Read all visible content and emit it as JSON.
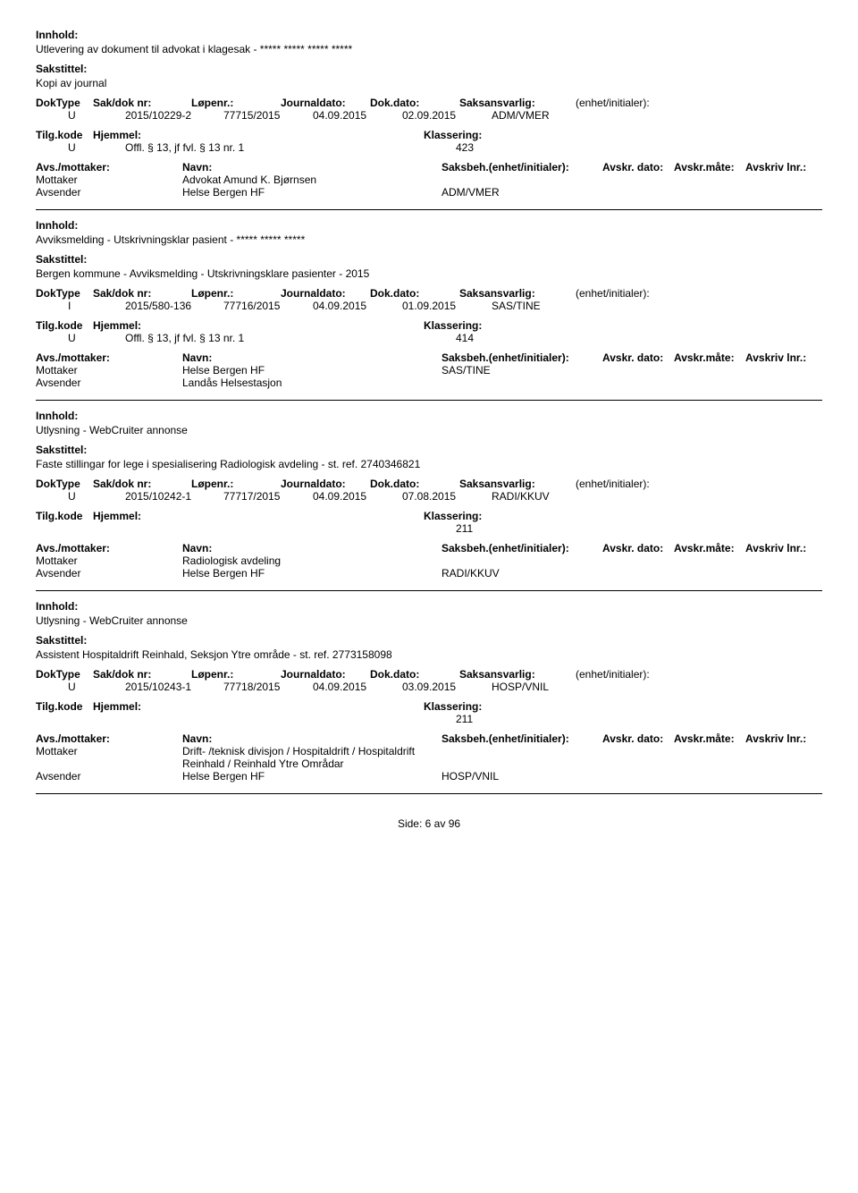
{
  "labels": {
    "innhold": "Innhold:",
    "sakstittel": "Sakstittel:",
    "doktype": "DokType",
    "sakdok": "Sak/dok nr:",
    "lopenr": "Løpenr.:",
    "journaldato": "Journaldato:",
    "dokdato": "Dok.dato:",
    "saksansvarlig": "Saksansvarlig:",
    "enhet": "(enhet/initialer):",
    "tilgkode": "Tilg.kode",
    "hjemmel": "Hjemmel:",
    "klassering": "Klassering:",
    "avsmottaker": "Avs./mottaker:",
    "navn": "Navn:",
    "saksbeh": "Saksbeh.(enhet/initialer):",
    "avskrdato": "Avskr. dato:",
    "avskrmate": "Avskr.måte:",
    "avskrivlnr": "Avskriv lnr.:",
    "mottaker": "Mottaker",
    "avsender": "Avsender"
  },
  "records": [
    {
      "innhold": "Utlevering av dokument til advokat i klagesak - ***** ***** ***** *****",
      "sakstittel": "Kopi av journal",
      "doktype": "U",
      "sakdok": "2015/10229-2",
      "lopenr": "77715/2015",
      "journaldato": "04.09.2015",
      "dokdato": "02.09.2015",
      "saksansvarlig": "ADM/VMER",
      "tilgkode": "U",
      "hjemmel": "Offl. § 13, jf fvl. § 13 nr. 1",
      "klassering": "423",
      "parties": [
        {
          "role": "Mottaker",
          "navn": "Advokat Amund K. Bjørnsen",
          "saksbeh": ""
        },
        {
          "role": "Avsender",
          "navn": "Helse Bergen HF",
          "saksbeh": "ADM/VMER"
        }
      ]
    },
    {
      "innhold": "Avviksmelding - Utskrivningsklar pasient - ***** ***** *****",
      "sakstittel": "Bergen kommune - Avviksmelding - Utskrivningsklare pasienter - 2015",
      "doktype": "I",
      "sakdok": "2015/580-136",
      "lopenr": "77716/2015",
      "journaldato": "04.09.2015",
      "dokdato": "01.09.2015",
      "saksansvarlig": "SAS/TINE",
      "tilgkode": "U",
      "hjemmel": "Offl. § 13, jf fvl. § 13 nr. 1",
      "klassering": "414",
      "parties": [
        {
          "role": "Mottaker",
          "navn": "Helse Bergen HF",
          "saksbeh": "SAS/TINE"
        },
        {
          "role": "Avsender",
          "navn": "Landås Helsestasjon",
          "saksbeh": ""
        }
      ]
    },
    {
      "innhold": "Utlysning - WebCruiter annonse",
      "sakstittel": "Faste stillingar for lege i spesialisering Radiologisk avdeling - st. ref. 2740346821",
      "doktype": "U",
      "sakdok": "2015/10242-1",
      "lopenr": "77717/2015",
      "journaldato": "04.09.2015",
      "dokdato": "07.08.2015",
      "saksansvarlig": "RADI/KKUV",
      "tilgkode": "",
      "hjemmel": "",
      "klassering": "211",
      "parties": [
        {
          "role": "Mottaker",
          "navn": "Radiologisk avdeling",
          "saksbeh": ""
        },
        {
          "role": "Avsender",
          "navn": "Helse Bergen HF",
          "saksbeh": "RADI/KKUV"
        }
      ]
    },
    {
      "innhold": "Utlysning - WebCruiter annonse",
      "sakstittel": "Assistent Hospitaldrift Reinhald, Seksjon Ytre område - st. ref. 2773158098",
      "doktype": "U",
      "sakdok": "2015/10243-1",
      "lopenr": "77718/2015",
      "journaldato": "04.09.2015",
      "dokdato": "03.09.2015",
      "saksansvarlig": "HOSP/VNIL",
      "tilgkode": "",
      "hjemmel": "",
      "klassering": "211",
      "parties": [
        {
          "role": "Mottaker",
          "navn": "Drift- /teknisk divisjon / Hospitaldrift / Hospitaldrift Reinhald / Reinhald Ytre Områdar",
          "saksbeh": ""
        },
        {
          "role": "Avsender",
          "navn": "Helse Bergen HF",
          "saksbeh": "HOSP/VNIL"
        }
      ]
    }
  ],
  "footer": {
    "side": "Side:",
    "page": "6",
    "av": "av",
    "total": "96"
  }
}
